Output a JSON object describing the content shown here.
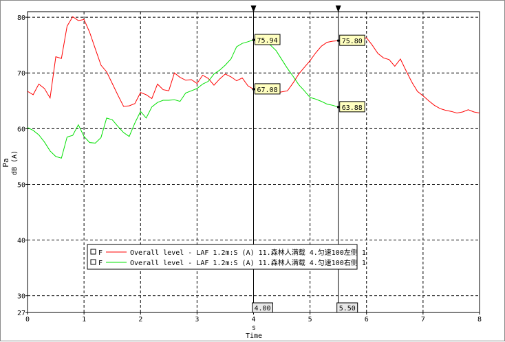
{
  "chart_data": {
    "type": "line",
    "title": "",
    "xlabel": "s",
    "xlabel2": "Time",
    "ylabel": "Pa",
    "ylabel2": "dB (A)",
    "xlim": [
      0,
      8
    ],
    "ylim": [
      27,
      81
    ],
    "x_ticks": [
      "0",
      "1",
      "2",
      "3",
      "4",
      "5",
      "6",
      "7",
      "8"
    ],
    "y_ticks": [
      {
        "value": 27,
        "label": "27"
      },
      {
        "value": 30,
        "label": "30"
      },
      {
        "value": 40,
        "label": "40"
      },
      {
        "value": 50,
        "label": "50"
      },
      {
        "value": 60,
        "label": "60"
      },
      {
        "value": 70,
        "label": "70"
      },
      {
        "value": 80,
        "label": "80"
      }
    ],
    "grid": true,
    "legend_position": "bottom-center",
    "series": [
      {
        "name": "Overall level - LAF 1.2m:S (A) 11.森林人满载 4.匀速100左侧 1",
        "marker": "F",
        "color": "#ff0000",
        "x": [
          0,
          0.1,
          0.2,
          0.3,
          0.4,
          0.5,
          0.6,
          0.7,
          0.8,
          0.9,
          1.0,
          1.1,
          1.2,
          1.3,
          1.4,
          1.5,
          1.6,
          1.7,
          1.8,
          1.9,
          2.0,
          2.1,
          2.2,
          2.3,
          2.4,
          2.5,
          2.6,
          2.7,
          2.8,
          2.9,
          3.0,
          3.1,
          3.2,
          3.3,
          3.4,
          3.5,
          3.6,
          3.7,
          3.8,
          3.9,
          4.0,
          4.1,
          4.2,
          4.3,
          4.4,
          4.5,
          4.6,
          4.7,
          4.8,
          4.9,
          5.0,
          5.1,
          5.2,
          5.3,
          5.4,
          5.5,
          5.6,
          5.7,
          5.8,
          5.9,
          6.0,
          6.1,
          6.2,
          6.3,
          6.4,
          6.5,
          6.6,
          6.7,
          6.8,
          6.9,
          7.0,
          7.1,
          7.2,
          7.3,
          7.4,
          7.5,
          7.6,
          7.7,
          7.8,
          7.9,
          8.0
        ],
        "values": [
          66.7,
          66.1,
          68.0,
          67.2,
          65.5,
          72.9,
          72.6,
          78.4,
          80.1,
          79.4,
          79.6,
          77.3,
          74.3,
          71.4,
          70.2,
          68.1,
          66.0,
          64.0,
          64.1,
          64.5,
          66.5,
          66.1,
          65.4,
          68.0,
          67.0,
          66.8,
          70.0,
          69.2,
          68.7,
          68.8,
          68.1,
          69.6,
          69.0,
          67.8,
          68.9,
          69.8,
          69.3,
          68.6,
          69.1,
          67.7,
          67.08,
          67.1,
          66.5,
          66.6,
          66.4,
          66.6,
          66.8,
          68.2,
          69.8,
          71.0,
          72.2,
          73.6,
          74.8,
          75.5,
          75.7,
          75.8,
          75.9,
          76.1,
          75.8,
          76.1,
          76.3,
          75.0,
          73.5,
          72.7,
          72.4,
          71.2,
          72.5,
          70.4,
          68.4,
          66.7,
          65.9,
          65.0,
          64.2,
          63.6,
          63.3,
          63.1,
          62.8,
          63.0,
          63.4,
          63.0,
          62.8
        ]
      },
      {
        "name": "Overall level - LAF 1.2m:S (A) 11.森林人满载 4.匀速100右侧 1",
        "marker": "F",
        "color": "#00e000",
        "x": [
          0,
          0.1,
          0.2,
          0.3,
          0.4,
          0.5,
          0.6,
          0.7,
          0.8,
          0.9,
          1.0,
          1.1,
          1.2,
          1.3,
          1.4,
          1.5,
          1.6,
          1.7,
          1.8,
          1.9,
          2.0,
          2.1,
          2.2,
          2.3,
          2.4,
          2.5,
          2.6,
          2.7,
          2.8,
          2.9,
          3.0,
          3.1,
          3.2,
          3.3,
          3.4,
          3.5,
          3.6,
          3.7,
          3.8,
          3.9,
          4.0,
          4.1,
          4.2,
          4.3,
          4.4,
          4.5,
          4.6,
          4.7,
          4.8,
          4.9,
          5.0,
          5.1,
          5.2,
          5.3,
          5.4,
          5.5
        ],
        "values": [
          60.2,
          59.7,
          58.9,
          57.6,
          56.0,
          55.0,
          54.7,
          58.5,
          58.8,
          60.7,
          58.6,
          57.5,
          57.4,
          58.4,
          61.9,
          61.6,
          60.4,
          59.3,
          58.6,
          61.0,
          63.1,
          61.9,
          63.9,
          64.7,
          65.1,
          65.1,
          65.2,
          64.9,
          66.4,
          66.8,
          67.2,
          68.0,
          68.5,
          69.8,
          70.5,
          71.4,
          72.5,
          74.7,
          75.3,
          75.6,
          75.94,
          75.6,
          75.4,
          75.0,
          74.0,
          72.4,
          70.8,
          69.4,
          67.9,
          66.8,
          65.6,
          65.3,
          64.9,
          64.4,
          64.2,
          63.88
        ]
      }
    ],
    "cursors": [
      {
        "x": 4.0,
        "label": "4.00",
        "readouts": [
          "75.94",
          "67.08"
        ]
      },
      {
        "x": 5.5,
        "label": "5.50",
        "readouts": [
          "75.80",
          "63.88"
        ]
      }
    ]
  }
}
